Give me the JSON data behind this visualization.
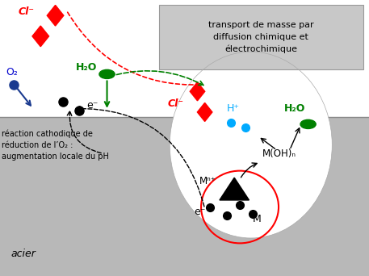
{
  "bg_top": "#ffffff",
  "bg_steel": "#b8b8b8",
  "box_color": "#c8c8c8",
  "title_box_text": "transport de masse par\ndiffusion chimique et\nélectrochimique",
  "acier_label": "acier",
  "label_Cl_top": "Cl⁻",
  "label_O2": "O₂",
  "label_H2O_left": "H₂O",
  "label_Cl_pit": "Cl⁻",
  "label_Hplus": "H⁺",
  "label_H2O_right": "H₂O",
  "label_MOHn": "M(OH)ₙ",
  "label_Mn": "Mⁿ⁺",
  "label_M": "M",
  "label_eminus_left": "e⁻",
  "label_eminus_pit": "e⁻",
  "label_cathodic": "réaction cathodique de\nréduction de l’O₂ :\naugmentation locale du pH",
  "fig_width": 4.57,
  "fig_height": 3.42,
  "dpi": 100
}
